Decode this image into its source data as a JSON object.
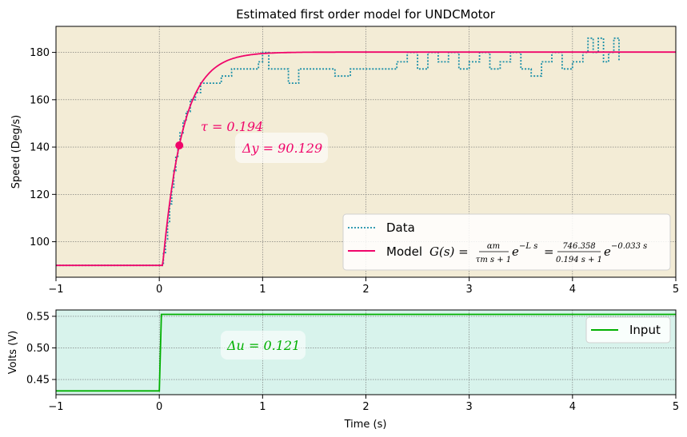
{
  "colors": {
    "top_bg": "#f3ecd6",
    "bottom_bg": "#d8f3ec",
    "data": "#1a8fa8",
    "model": "#f0056a",
    "input": "#00b000",
    "grid": "#6b6b6b"
  },
  "chart_data": [
    {
      "type": "line",
      "title": "Estimated first order model for UNDCMotor",
      "xlabel": "",
      "ylabel": "Speed (Deg/s)",
      "xlim": [
        -1,
        5
      ],
      "ylim": [
        85,
        191
      ],
      "xticks": [
        "−1",
        "0",
        "1",
        "2",
        "3",
        "4",
        "5"
      ],
      "yticks": [
        "100",
        "120",
        "140",
        "160",
        "180"
      ],
      "grid": true,
      "legend_position": "lower-right",
      "model_params": {
        "y0": 90,
        "delta_y": 90.129,
        "tau": 0.194,
        "L": 0.033
      },
      "tau_point": {
        "x": 0.194,
        "y": 140.7
      },
      "annotations": {
        "tau": "τ = 0.194",
        "delta_y": "Δy = 90.129"
      },
      "series": [
        {
          "name": "Data",
          "style": "dotted",
          "x": [
            -1,
            0.02,
            0.04,
            0.06,
            0.08,
            0.1,
            0.12,
            0.14,
            0.16,
            0.18,
            0.2,
            0.23,
            0.26,
            0.3,
            0.35,
            0.4,
            0.45,
            0.5,
            0.55,
            0.6,
            0.7,
            0.8,
            0.9,
            0.96,
            1.0,
            1.06,
            1.15,
            1.25,
            1.35,
            1.4,
            1.55,
            1.7,
            1.85,
            2.0,
            2.15,
            2.3,
            2.4,
            2.5,
            2.6,
            2.7,
            2.8,
            2.9,
            3.0,
            3.1,
            3.2,
            3.3,
            3.4,
            3.5,
            3.6,
            3.7,
            3.8,
            3.9,
            4.0,
            4.1,
            4.15,
            4.2,
            4.25,
            4.3,
            4.35,
            4.4,
            4.45
          ],
          "y": [
            90,
            90,
            95,
            101,
            108,
            116,
            123,
            130,
            136,
            140,
            146,
            151,
            155,
            160,
            163,
            167,
            167,
            167,
            167,
            170,
            173,
            173,
            173,
            176,
            180,
            173,
            173,
            167,
            173,
            173,
            173,
            170,
            173,
            173,
            173,
            176,
            180,
            173,
            180,
            176,
            180,
            173,
            176,
            180,
            173,
            176,
            180,
            173,
            170,
            176,
            180,
            173,
            176,
            180,
            186,
            180,
            186,
            176,
            180,
            186,
            176
          ]
        },
        {
          "name": "Model G(s) = αm/(τm s + 1) e^(−L s) = 746.358/(0.194 s + 1) e^(−0.033 s)",
          "style": "solid",
          "expr": "y = 90 + 90.129·(1 − exp(−(t − 0.033)/0.194)) for t > 0.033"
        }
      ],
      "legend": {
        "data_label": "Data",
        "model_prefix": "Model ",
        "model_lhs": "G(s) =",
        "model_num1": "αm",
        "model_den1": "τm s + 1",
        "model_exp1": "−L s",
        "model_num2": "746.358",
        "model_den2": "0.194 s + 1",
        "model_exp2": "−0.033 s",
        "e": "e"
      }
    },
    {
      "type": "line",
      "title": "",
      "xlabel": "Time (s)",
      "ylabel": "Volts (V)",
      "xlim": [
        -1,
        5
      ],
      "ylim": [
        0.426,
        0.56
      ],
      "xticks": [
        "−1",
        "0",
        "1",
        "2",
        "3",
        "4",
        "5"
      ],
      "yticks": [
        "0.45",
        "0.50",
        "0.55"
      ],
      "grid": true,
      "legend_position": "upper-right",
      "annotation": "Δu = 0.121",
      "series": [
        {
          "name": "Input",
          "x": [
            -1,
            0,
            0.02,
            5
          ],
          "y": [
            0.432,
            0.432,
            0.553,
            0.553
          ]
        }
      ]
    }
  ]
}
